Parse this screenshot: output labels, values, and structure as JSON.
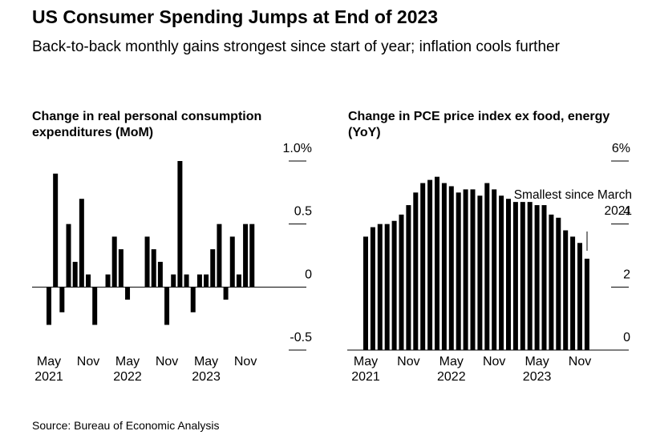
{
  "title": "US Consumer Spending Jumps at End of 2023",
  "subtitle": "Back-to-back monthly gains strongest since start of year; inflation cools further",
  "source": "Source: Bureau of Economic Analysis",
  "chart_data": [
    {
      "type": "bar",
      "title": "Change in real personal consumption expenditures (MoM)",
      "categories": [
        "May 2021",
        null,
        null,
        null,
        null,
        null,
        "Nov",
        null,
        null,
        null,
        null,
        null,
        "May 2022",
        null,
        null,
        null,
        null,
        null,
        "Nov",
        null,
        null,
        null,
        null,
        null,
        "May 2023",
        null,
        null,
        null,
        null,
        null,
        "Nov",
        null
      ],
      "values": [
        -0.3,
        0.9,
        -0.2,
        0.5,
        0.2,
        0.7,
        0.1,
        -0.3,
        0.0,
        0.1,
        0.4,
        0.3,
        -0.1,
        0.0,
        0.0,
        0.4,
        0.3,
        0.2,
        -0.3,
        0.1,
        1.0,
        0.1,
        -0.2,
        0.1,
        0.1,
        0.3,
        0.5,
        -0.1,
        0.4,
        0.1,
        0.5,
        0.5
      ],
      "color": "#000000",
      "ylim": [
        -0.5,
        1.0
      ],
      "yticks": [
        {
          "value": 1.0,
          "label": "1.0%"
        },
        0.5,
        0,
        -0.5
      ],
      "y_axis_side": "right"
    },
    {
      "type": "bar",
      "title": "Change in PCE price index ex food, energy (YoY)",
      "categories": [
        "May 2021",
        null,
        null,
        null,
        null,
        null,
        "Nov",
        null,
        null,
        null,
        null,
        null,
        "May 2022",
        null,
        null,
        null,
        null,
        null,
        "Nov",
        null,
        null,
        null,
        null,
        null,
        "May 2023",
        null,
        null,
        null,
        null,
        null,
        "Nov",
        null
      ],
      "values": [
        3.6,
        3.9,
        4.0,
        4.0,
        4.1,
        4.3,
        4.6,
        5.0,
        5.3,
        5.4,
        5.5,
        5.3,
        5.2,
        5.0,
        5.1,
        5.1,
        4.9,
        5.3,
        5.1,
        4.9,
        4.8,
        4.7,
        4.7,
        4.7,
        4.6,
        4.6,
        4.3,
        4.2,
        3.8,
        3.6,
        3.4,
        2.9
      ],
      "color": "#000000",
      "ylim": [
        0,
        6
      ],
      "yticks": [
        {
          "value": 6,
          "label": "6%"
        },
        4,
        2,
        0
      ],
      "y_axis_side": "right",
      "annotation": "Smallest since March 2021"
    }
  ]
}
